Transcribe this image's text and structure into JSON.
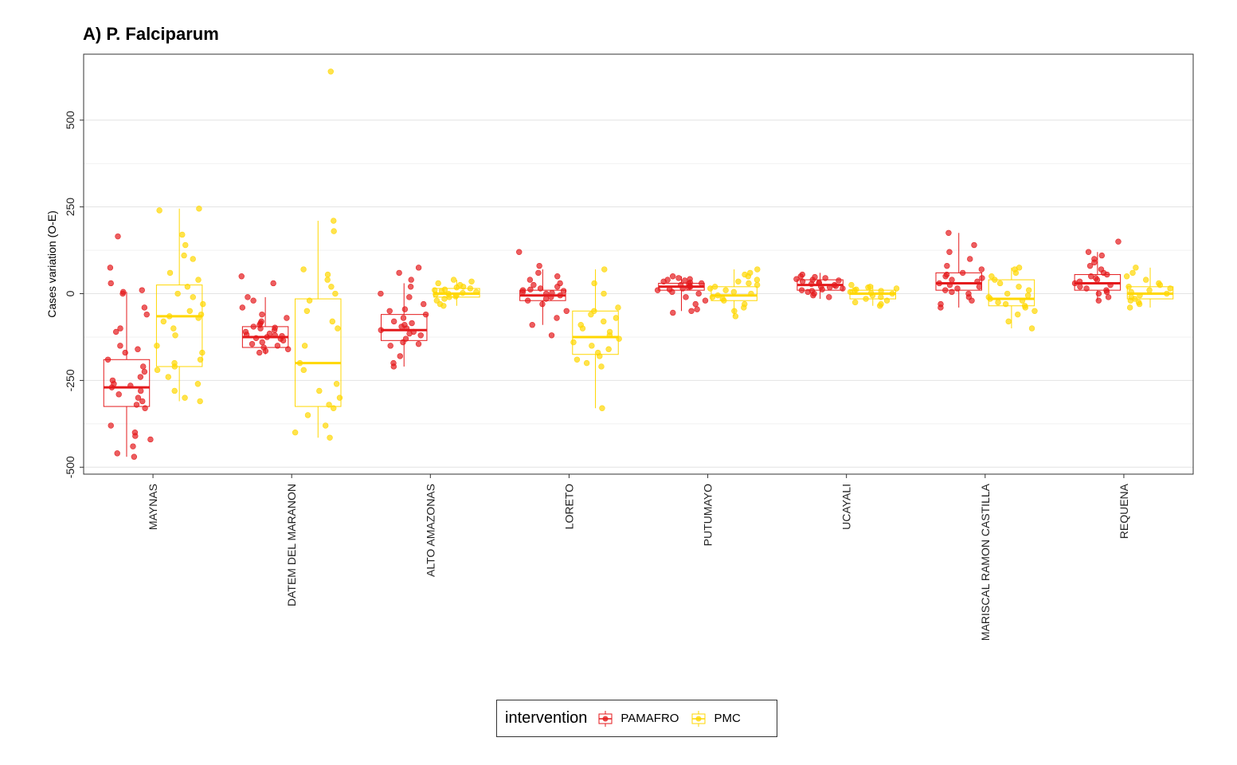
{
  "title": "A) P. Falciparum",
  "chart_data": {
    "type": "boxplot",
    "ylabel": "Cases variation (O-E)",
    "xlabel": "",
    "ylim": [
      -520,
      690
    ],
    "yticks": [
      -500,
      -250,
      0,
      250,
      500
    ],
    "ytick_labels": [
      "-500",
      "-250",
      "0",
      "250",
      "500"
    ],
    "grid": true,
    "legend_position": "bottom",
    "legend_title": "intervention",
    "categories": [
      "MAYNAS",
      "DATEM DEL MARANON",
      "ALTO AMAZONAS",
      "LORETO",
      "PUTUMAYO",
      "UCAYALI",
      "MARISCAL RAMON CASTILLA",
      "REQUENA"
    ],
    "series": [
      {
        "name": "PAMAFRO",
        "color": "#E41A1C",
        "boxes": [
          {
            "q1": -325,
            "median": -270,
            "q3": -190,
            "whisker_low": -470,
            "whisker_high": 5
          },
          {
            "q1": -155,
            "median": -125,
            "q3": -95,
            "whisker_low": -175,
            "whisker_high": -10
          },
          {
            "q1": -135,
            "median": -105,
            "q3": -60,
            "whisker_low": -210,
            "whisker_high": 30
          },
          {
            "q1": -20,
            "median": -5,
            "q3": 10,
            "whisker_low": -90,
            "whisker_high": 70
          },
          {
            "q1": 10,
            "median": 20,
            "q3": 30,
            "whisker_low": -50,
            "whisker_high": 50
          },
          {
            "q1": 10,
            "median": 25,
            "q3": 40,
            "whisker_low": -15,
            "whisker_high": 60
          },
          {
            "q1": 10,
            "median": 30,
            "q3": 60,
            "whisker_low": -40,
            "whisker_high": 175
          },
          {
            "q1": 10,
            "median": 30,
            "q3": 55,
            "whisker_low": -20,
            "whisker_high": 120
          }
        ],
        "points": [
          [
            -470,
            -460,
            -440,
            -420,
            -410,
            -400,
            -380,
            -330,
            -320,
            -310,
            -300,
            -290,
            -280,
            -270,
            -265,
            -260,
            -250,
            -240,
            -225,
            -210,
            -190,
            -170,
            -160,
            -150,
            -110,
            -100,
            -60,
            -40,
            0,
            5,
            10,
            30,
            75,
            165
          ],
          [
            -170,
            -165,
            -160,
            -155,
            -150,
            -145,
            -140,
            -135,
            -130,
            -128,
            -125,
            -122,
            -120,
            -118,
            -115,
            -110,
            -105,
            -100,
            -98,
            -95,
            -90,
            -85,
            -80,
            -70,
            -60,
            -40,
            -20,
            -10,
            30,
            50
          ],
          [
            -210,
            -200,
            -180,
            -150,
            -145,
            -140,
            -130,
            -120,
            -115,
            -110,
            -105,
            -100,
            -95,
            -90,
            -85,
            -80,
            -70,
            -60,
            -50,
            -45,
            -30,
            -10,
            0,
            20,
            40,
            60,
            75
          ],
          [
            -120,
            -90,
            -70,
            -50,
            -30,
            -20,
            -15,
            -10,
            -5,
            0,
            2,
            5,
            8,
            10,
            12,
            15,
            20,
            25,
            30,
            40,
            50,
            60,
            80,
            120
          ],
          [
            -55,
            -50,
            -45,
            -30,
            -20,
            -10,
            0,
            5,
            10,
            12,
            15,
            18,
            20,
            22,
            25,
            28,
            30,
            32,
            35,
            38,
            40,
            42,
            45,
            50
          ],
          [
            -10,
            -5,
            0,
            5,
            8,
            10,
            12,
            15,
            18,
            20,
            22,
            25,
            28,
            30,
            32,
            35,
            38,
            40,
            42,
            45,
            48,
            50,
            55
          ],
          [
            -40,
            -30,
            -20,
            -10,
            0,
            5,
            10,
            15,
            20,
            25,
            30,
            35,
            40,
            45,
            50,
            55,
            60,
            70,
            80,
            100,
            120,
            140,
            175
          ],
          [
            -20,
            -10,
            0,
            5,
            10,
            15,
            20,
            25,
            30,
            35,
            40,
            45,
            50,
            55,
            60,
            70,
            80,
            90,
            100,
            110,
            120,
            150
          ]
        ]
      },
      {
        "name": "PMC",
        "color": "#FFD700",
        "boxes": [
          {
            "q1": -210,
            "median": -65,
            "q3": 25,
            "whisker_low": -310,
            "whisker_high": 245
          },
          {
            "q1": -325,
            "median": -200,
            "q3": -15,
            "whisker_low": -415,
            "whisker_high": 210
          },
          {
            "q1": -10,
            "median": 0,
            "q3": 15,
            "whisker_low": -35,
            "whisker_high": 40
          },
          {
            "q1": -175,
            "median": -125,
            "q3": -50,
            "whisker_low": -330,
            "whisker_high": 70
          },
          {
            "q1": -20,
            "median": -5,
            "q3": 20,
            "whisker_low": -65,
            "whisker_high": 70
          },
          {
            "q1": -15,
            "median": 0,
            "q3": 10,
            "whisker_low": -35,
            "whisker_high": 25
          },
          {
            "q1": -35,
            "median": -15,
            "q3": 40,
            "whisker_low": -100,
            "whisker_high": 75
          },
          {
            "q1": -15,
            "median": 0,
            "q3": 20,
            "whisker_low": -40,
            "whisker_high": 75
          }
        ],
        "points": [
          [
            -310,
            -300,
            -280,
            -260,
            -240,
            -220,
            -210,
            -200,
            -190,
            -170,
            -150,
            -120,
            -100,
            -80,
            -70,
            -65,
            -60,
            -50,
            -30,
            -10,
            0,
            20,
            40,
            60,
            100,
            110,
            140,
            170,
            240,
            245
          ],
          [
            -415,
            -400,
            -380,
            -350,
            -330,
            -320,
            -300,
            -280,
            -260,
            -220,
            -200,
            -150,
            -100,
            -80,
            -50,
            -20,
            0,
            20,
            40,
            55,
            70,
            180,
            210,
            640
          ],
          [
            -35,
            -30,
            -20,
            -15,
            -10,
            -8,
            -5,
            -2,
            0,
            2,
            5,
            8,
            10,
            12,
            15,
            18,
            20,
            25,
            30,
            35,
            40
          ],
          [
            -330,
            -210,
            -200,
            -190,
            -180,
            -170,
            -160,
            -150,
            -140,
            -130,
            -120,
            -110,
            -100,
            -90,
            -80,
            -70,
            -60,
            -50,
            -40,
            0,
            30,
            70
          ],
          [
            -65,
            -50,
            -40,
            -30,
            -20,
            -15,
            -10,
            -5,
            0,
            5,
            10,
            15,
            20,
            25,
            30,
            35,
            40,
            50,
            55,
            60,
            70
          ],
          [
            -35,
            -30,
            -25,
            -20,
            -15,
            -10,
            -5,
            0,
            2,
            5,
            8,
            10,
            12,
            15,
            18,
            20,
            25
          ],
          [
            -100,
            -80,
            -60,
            -50,
            -40,
            -35,
            -30,
            -25,
            -20,
            -15,
            -10,
            -5,
            0,
            10,
            20,
            30,
            40,
            50,
            60,
            70,
            75
          ],
          [
            -40,
            -30,
            -25,
            -20,
            -15,
            -10,
            -5,
            0,
            5,
            10,
            15,
            20,
            25,
            30,
            40,
            50,
            60,
            75
          ]
        ]
      }
    ]
  }
}
